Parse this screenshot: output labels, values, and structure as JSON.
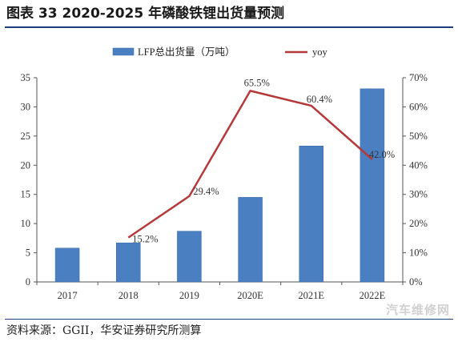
{
  "title": "图表 33 2020-2025 年磷酸铁锂出货量预测",
  "source": "资料来源：GGII，华安证券研究所测算",
  "watermark": "汽车维修网",
  "colors": {
    "bar": "#4a7fc1",
    "bar_edge": "#3a6aa8",
    "line": "#b5393a",
    "rule": "#1f3f7a"
  },
  "chart_data": {
    "type": "bar",
    "categories": [
      "2017",
      "2018",
      "2019",
      "2020E",
      "2021E",
      "2022E"
    ],
    "series": [
      {
        "name": "LFP总出货量（万吨）",
        "type": "bar",
        "axis": "left",
        "values": [
          5.8,
          6.7,
          8.7,
          14.5,
          23.3,
          33.1
        ]
      },
      {
        "name": "yoy",
        "type": "line",
        "axis": "right",
        "values": [
          null,
          15.2,
          29.4,
          65.5,
          60.4,
          42.0
        ],
        "labels": [
          "",
          "15.2%",
          "29.4%",
          "65.5%",
          "60.4%",
          "42.0%"
        ]
      }
    ],
    "ylim": [
      0,
      35
    ],
    "y_ticks": [
      "0",
      "5",
      "10",
      "15",
      "20",
      "25",
      "30",
      "35"
    ],
    "y2lim": [
      0,
      70
    ],
    "y2_ticks": [
      "0%",
      "10%",
      "20%",
      "30%",
      "40%",
      "50%",
      "60%",
      "70%"
    ],
    "legend": "top-center",
    "grid": false
  }
}
